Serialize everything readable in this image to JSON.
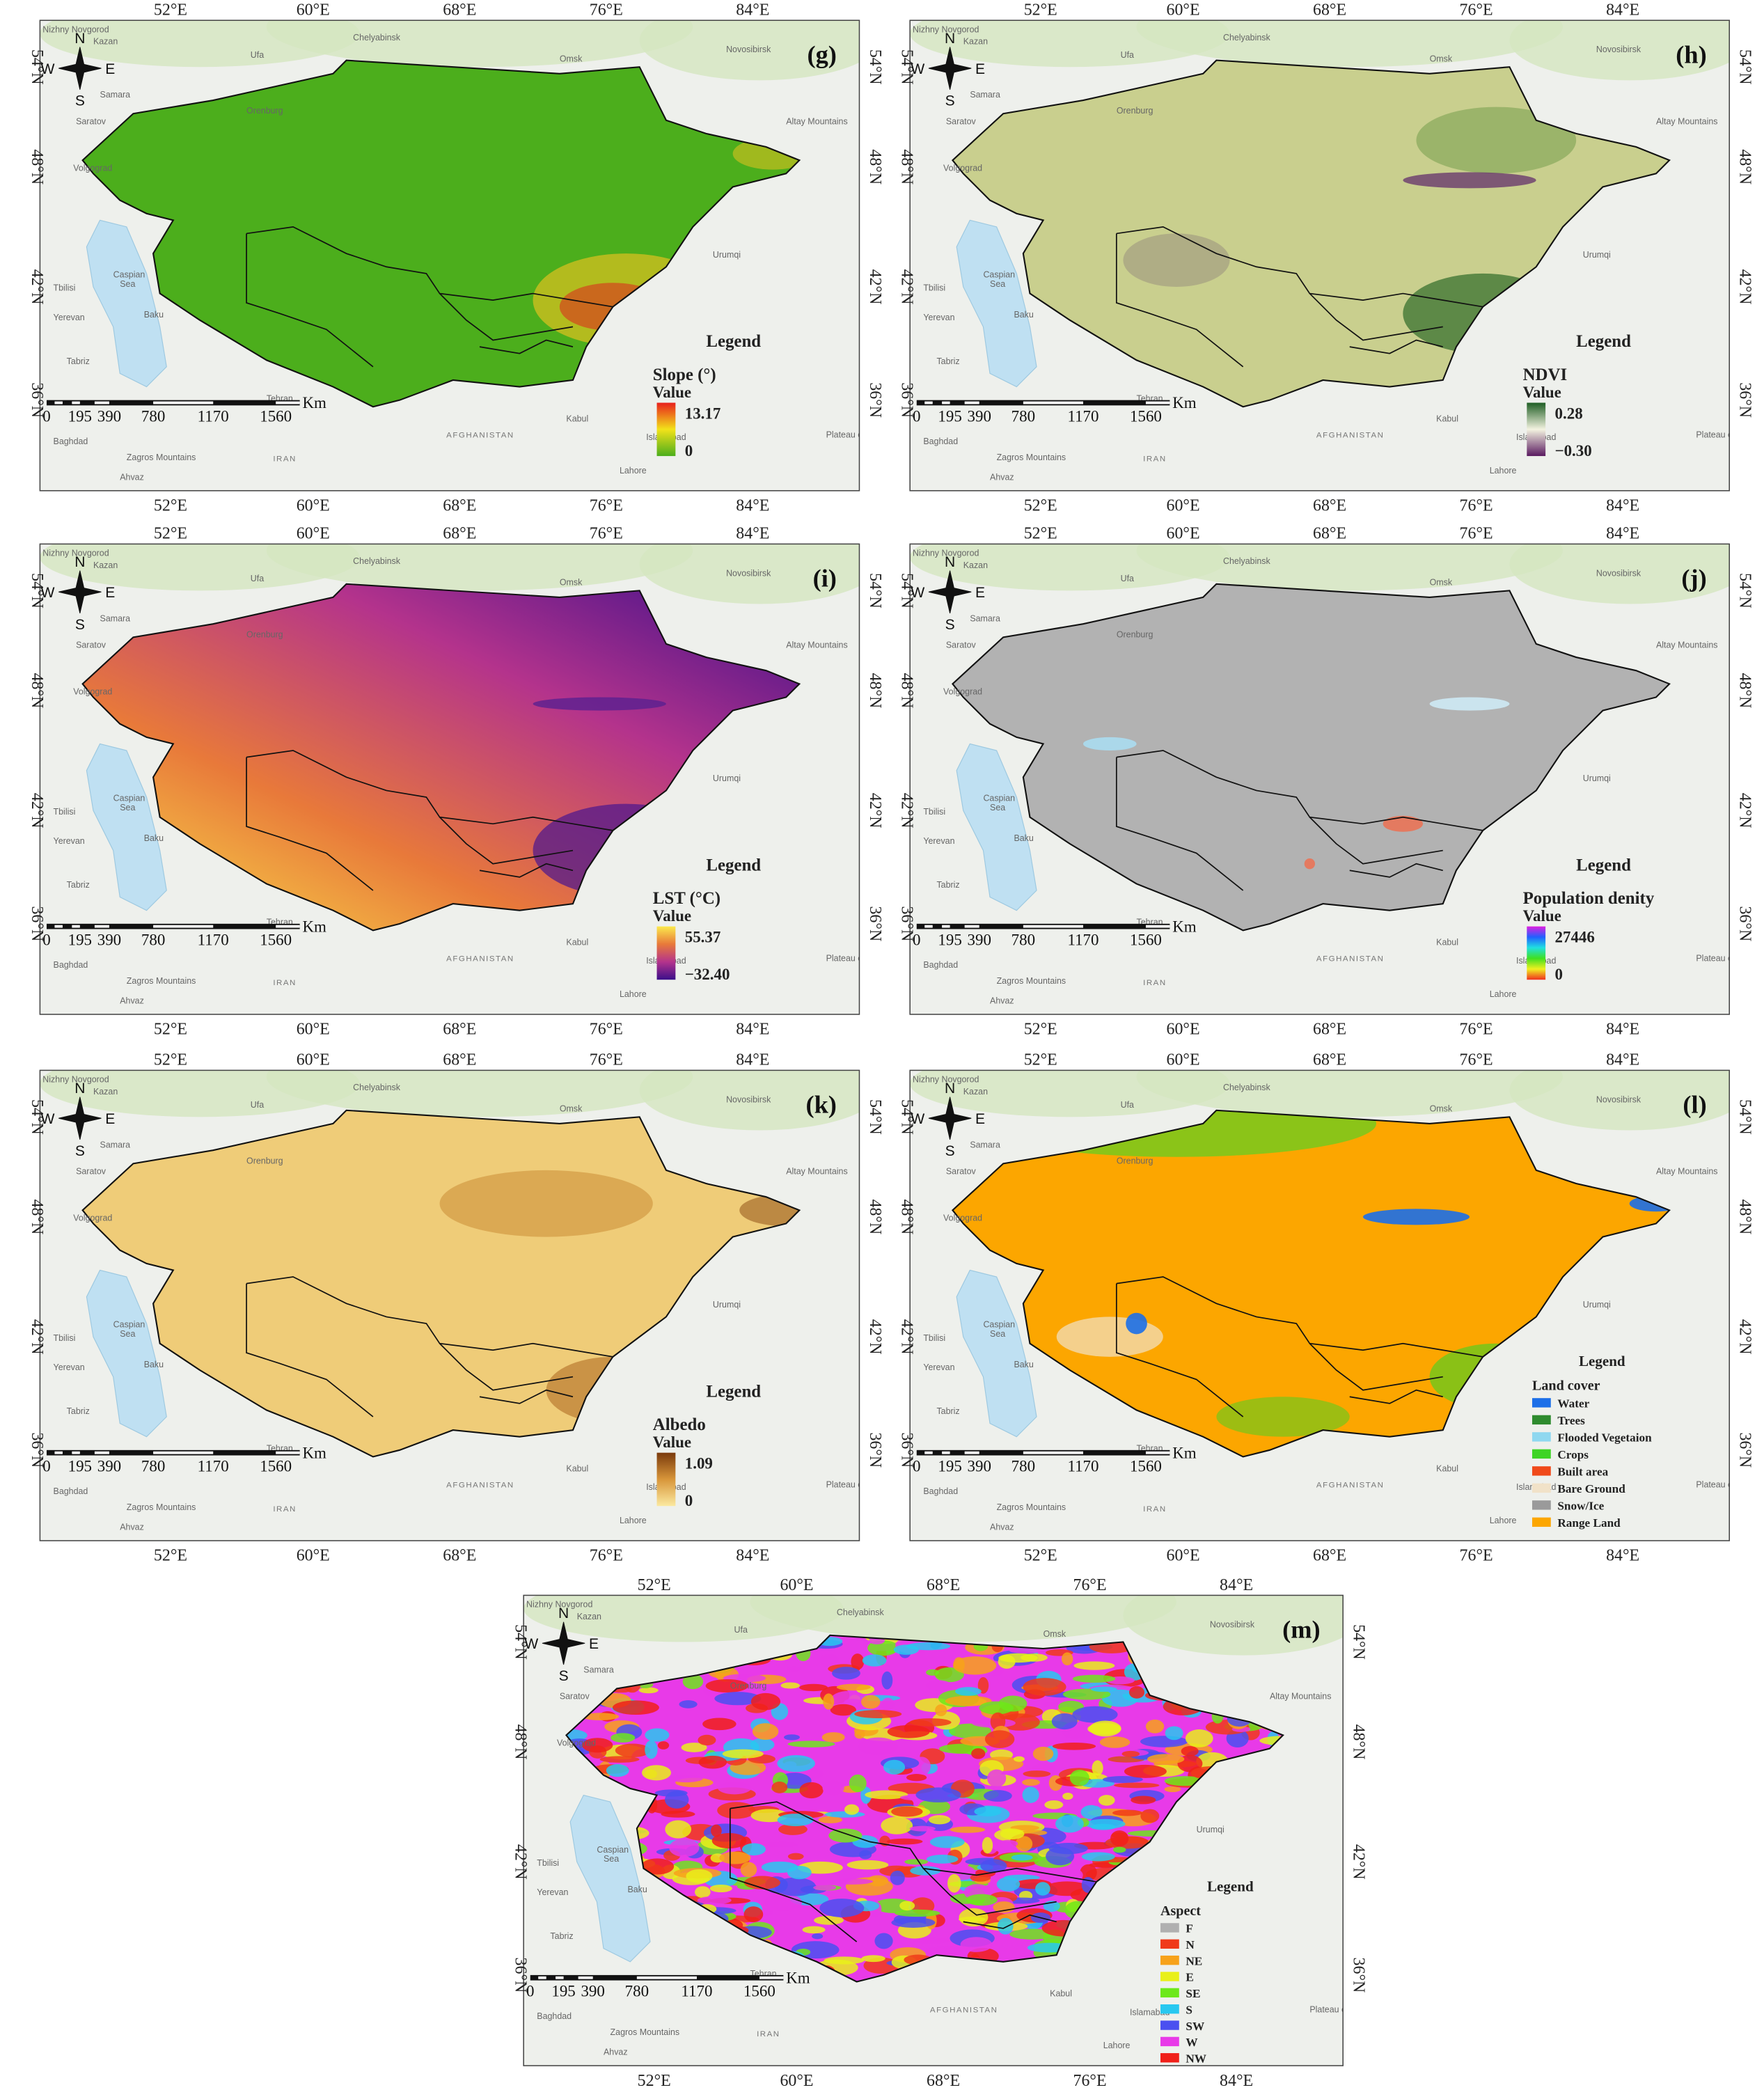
{
  "axes": {
    "lon": [
      "52°E",
      "60°E",
      "68°E",
      "76°E",
      "84°E"
    ],
    "lat": [
      "54°N",
      "48°N",
      "42°N",
      "36°N"
    ]
  },
  "compass": {
    "n": "N",
    "s": "S",
    "e": "E",
    "w": "W"
  },
  "scale_bar": {
    "labels": [
      "0",
      "195",
      "390",
      "780",
      "1170",
      "1560"
    ],
    "unit": "Km"
  },
  "places": [
    "Nizhny Novgorod",
    "Kazan",
    "Ufa",
    "Chelyabinsk",
    "Omsk",
    "Novosibirsk",
    "Samara",
    "Orenburg",
    "Saratov",
    "Volgograd",
    "Altay Mountains",
    "Urumqi",
    "Tbilisi",
    "Yerevan",
    "Baku",
    "Tabriz",
    "Caspian",
    "Sea",
    "Tehran",
    "AFGHANISTAN",
    "Kabul",
    "Islamabad",
    "Plateau of",
    "Zagros Mountains",
    "IRAN",
    "Ahvaz",
    "Baghdad",
    "Lahore"
  ],
  "legend_heading": "Legend",
  "panels": [
    {
      "label": "(g)",
      "title": "Slope (°)",
      "subtitle": "Value",
      "max": "13.17",
      "min": "0",
      "ramp": [
        "#e8201c",
        "#f2e21a",
        "#4cae1c"
      ]
    },
    {
      "label": "(h)",
      "title": "NDVI",
      "subtitle": "Value",
      "max": "0.28",
      "min": "−0.30",
      "ramp": [
        "#1f5e24",
        "#f3f3e0",
        "#5a1a60"
      ]
    },
    {
      "label": "(i)",
      "title": "LST (°C)",
      "subtitle": "Value",
      "max": "55.37",
      "min": "−32.40",
      "ramp": [
        "#fbe94c",
        "#e8793a",
        "#b4338c",
        "#3b0f8a"
      ]
    },
    {
      "label": "(j)",
      "title": "Population denity",
      "subtitle": "Value",
      "max": "27446",
      "min": "0",
      "ramp": [
        "#e020e0",
        "#2060ff",
        "#20e0e0",
        "#40e020",
        "#f0f020",
        "#f03020"
      ]
    },
    {
      "label": "(k)",
      "title": "Albedo",
      "subtitle": "Value",
      "max": "1.09",
      "min": "0",
      "ramp": [
        "#7a3a0c",
        "#d8963a",
        "#fbe9a0"
      ]
    },
    {
      "label": "(l)",
      "title": "Land cover",
      "items": [
        {
          "name": "Water",
          "color": "#1c6fe8"
        },
        {
          "name": "Trees",
          "color": "#2e8b2e"
        },
        {
          "name": "Flooded Vegetaion",
          "color": "#8fd8f0"
        },
        {
          "name": "Crops",
          "color": "#3ed424"
        },
        {
          "name": "Built area",
          "color": "#f04a1a"
        },
        {
          "name": "Bare Ground",
          "color": "#f1e2c8"
        },
        {
          "name": "Snow/Ice",
          "color": "#9a9a9a"
        },
        {
          "name": "Range Land",
          "color": "#fca600"
        }
      ]
    },
    {
      "label": "(m)",
      "title": "Aspect",
      "items": [
        {
          "name": "F",
          "color": "#b0b0b0"
        },
        {
          "name": "N",
          "color": "#f03a1a"
        },
        {
          "name": "NE",
          "color": "#f7a21a"
        },
        {
          "name": "E",
          "color": "#e9f01a"
        },
        {
          "name": "SE",
          "color": "#6de81a"
        },
        {
          "name": "S",
          "color": "#28c8f0"
        },
        {
          "name": "SW",
          "color": "#4a50f0"
        },
        {
          "name": "W",
          "color": "#e83ae8"
        },
        {
          "name": "NW",
          "color": "#f0201a"
        }
      ]
    }
  ]
}
